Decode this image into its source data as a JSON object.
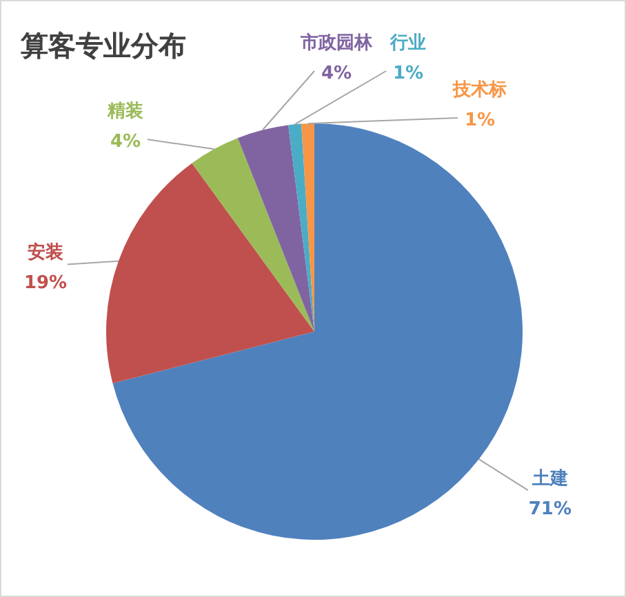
{
  "chart_data": {
    "type": "pie",
    "title": "算客专业分布",
    "categories": [
      "土建",
      "安装",
      "精装",
      "市政园林",
      "行业",
      "技术标"
    ],
    "values": [
      71,
      19,
      4,
      4,
      1,
      1
    ],
    "colors": [
      "#4f81bd",
      "#c0504d",
      "#9bbb59",
      "#8064a2",
      "#4bacc6",
      "#f79646"
    ],
    "value_labels": [
      "71%",
      "19%",
      "4%",
      "4%",
      "1%",
      "1%"
    ],
    "legend": false
  }
}
